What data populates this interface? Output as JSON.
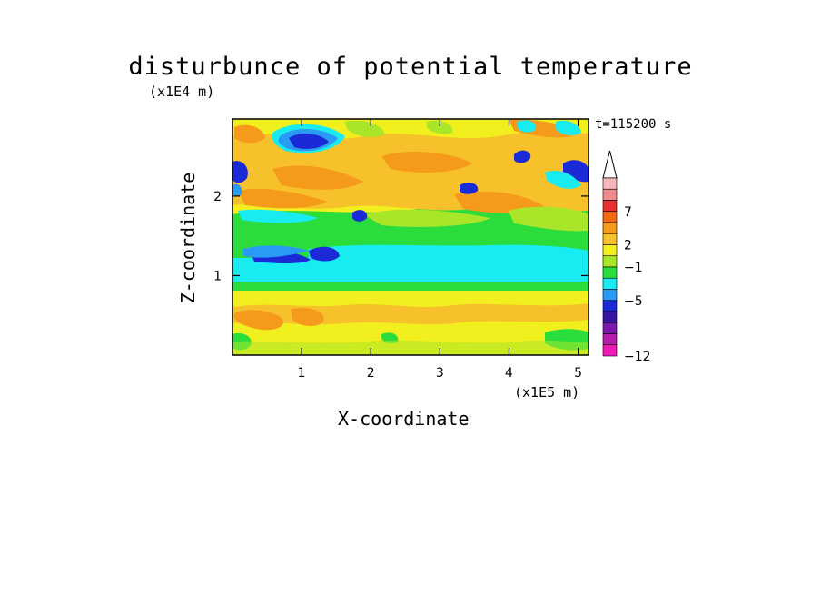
{
  "chart_data": {
    "type": "heatmap",
    "title": "disturbunce of potential temperature",
    "xlabel": "X-coordinate",
    "ylabel": "Z-coordinate",
    "x_unit": "(x1E5 m)",
    "y_unit": "(x1E4 m)",
    "time_label": "t=115200 s",
    "x_ticks": [
      "1",
      "2",
      "3",
      "4",
      "5"
    ],
    "y_ticks": [
      "1",
      "2"
    ],
    "xlim": [
      0,
      5.15
    ],
    "ylim": [
      0,
      2.97
    ],
    "colorbar": {
      "tick_labels": [
        "7",
        "2",
        "−1",
        "−5",
        "−12"
      ],
      "colors_top_to_bottom": [
        "#f4b6bc",
        "#f08c8c",
        "#e83030",
        "#f36a10",
        "#f59a1a",
        "#f7c12b",
        "#f2ef1e",
        "#a9e62a",
        "#2bdd3c",
        "#18ecf0",
        "#2a9bf5",
        "#1a2ad6",
        "#3516a0",
        "#7b1aa8",
        "#b71da8",
        "#f01ab4"
      ]
    },
    "field_colors": {
      "cold_strong": "#1a2ad6",
      "cold": "#2a9bf5",
      "cool": "#18ecf0",
      "near_zero": "#2bdd3c",
      "slight_warm": "#a9e62a",
      "warm": "#f2ef1e",
      "warmer": "#f7c12b",
      "hot": "#f59a1a"
    }
  }
}
